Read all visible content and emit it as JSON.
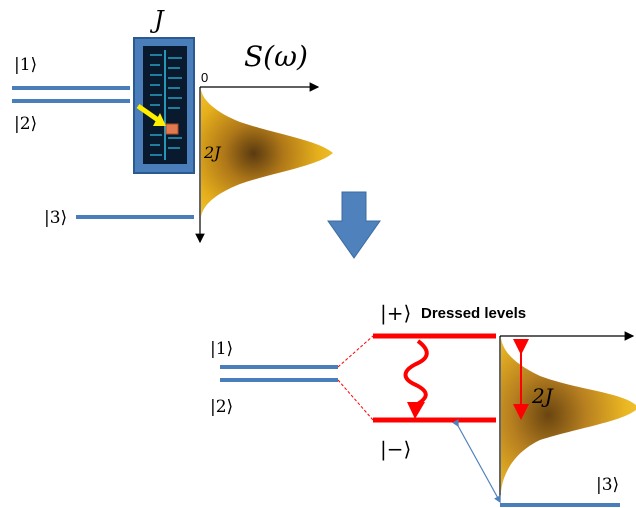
{
  "top": {
    "coupling_label": "J",
    "spectrum_label": "S(ω)",
    "axis_origin_label": "0",
    "width_label": "2J",
    "levels": {
      "one": "|1⟩",
      "two": "|2⟩",
      "three": "|3⟩"
    }
  },
  "bottom": {
    "dressed_title": "Dressed levels",
    "plus_label": "|+⟩",
    "minus_label": "|−⟩",
    "width_label": "2J",
    "levels": {
      "one": "|1⟩",
      "two": "|2⟩",
      "three": "|3⟩"
    }
  },
  "colors": {
    "level_blue": "#4a7ebb",
    "dressed_red": "#ff0000",
    "spectrum_gold": "#e8b21c",
    "arrow_blue": "#4f81bd",
    "pointer_yellow": "#ffee00"
  },
  "icons": {
    "transition": "down-arrow-icon",
    "gauge": "dial-gauge-icon"
  }
}
